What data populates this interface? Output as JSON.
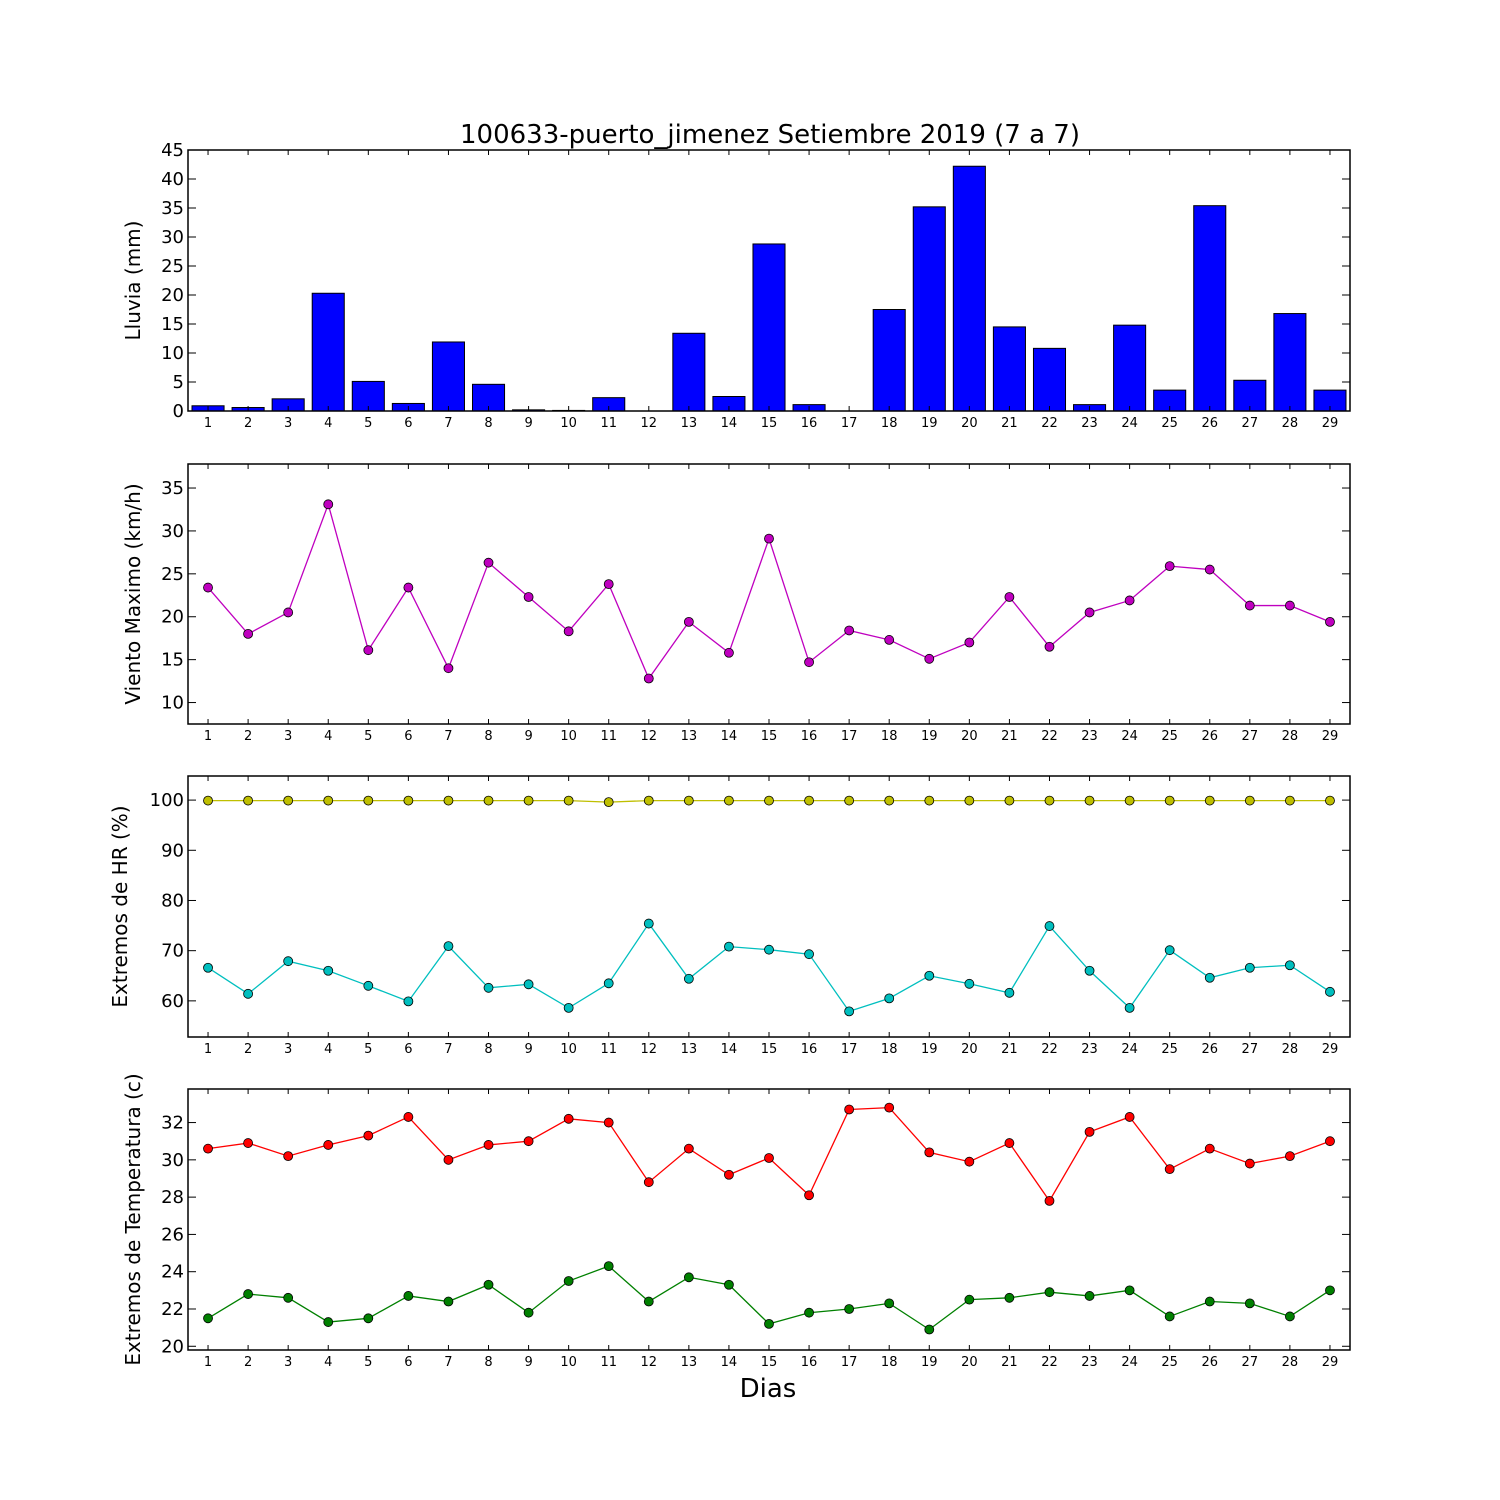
{
  "figure": {
    "title": "100633-puerto_jimenez Setiembre 2019  (7 a 7)",
    "xlabel": "Dias"
  },
  "chart_data": [
    {
      "type": "bar",
      "ylabel": "Lluvia (mm)",
      "ylim": [
        0,
        45
      ],
      "yticks": [
        0,
        5,
        10,
        15,
        20,
        25,
        30,
        35,
        40,
        45
      ],
      "grid": false,
      "categories": [
        1,
        2,
        3,
        4,
        5,
        6,
        7,
        8,
        9,
        10,
        11,
        12,
        13,
        14,
        15,
        16,
        17,
        18,
        19,
        20,
        21,
        22,
        23,
        24,
        25,
        26,
        27,
        28,
        29
      ],
      "series": [
        {
          "color": "#0000ff",
          "values": [
            0.9,
            0.6,
            2.1,
            20.3,
            5.1,
            1.3,
            11.9,
            4.6,
            0.2,
            0.1,
            2.3,
            0.0,
            13.4,
            2.5,
            28.8,
            1.1,
            0.0,
            17.5,
            35.2,
            42.2,
            14.5,
            10.8,
            1.1,
            14.8,
            3.6,
            35.4,
            5.3,
            16.8,
            3.6
          ]
        }
      ]
    },
    {
      "type": "line",
      "ylabel": "Viento Maximo (km/h)",
      "ylim": [
        7.5,
        37.8
      ],
      "yticks": [
        10,
        15,
        20,
        25,
        30,
        35
      ],
      "grid": false,
      "x": [
        1,
        2,
        3,
        4,
        5,
        6,
        7,
        8,
        9,
        10,
        11,
        12,
        13,
        14,
        15,
        16,
        17,
        18,
        19,
        20,
        21,
        22,
        23,
        24,
        25,
        26,
        27,
        28,
        29
      ],
      "series": [
        {
          "color": "#bf00bf",
          "values": [
            23.4,
            18.0,
            20.5,
            33.1,
            16.1,
            23.4,
            14.0,
            26.3,
            22.3,
            18.3,
            23.8,
            12.8,
            19.4,
            15.8,
            29.1,
            14.7,
            18.4,
            17.3,
            15.1,
            17.0,
            22.3,
            16.5,
            20.5,
            21.9,
            25.9,
            25.5,
            21.3,
            21.3,
            19.4
          ]
        }
      ]
    },
    {
      "type": "line",
      "ylabel": "Extremos de HR (%)",
      "ylim": [
        52.8,
        104.8
      ],
      "yticks": [
        60,
        70,
        80,
        90,
        100
      ],
      "grid": false,
      "x": [
        1,
        2,
        3,
        4,
        5,
        6,
        7,
        8,
        9,
        10,
        11,
        12,
        13,
        14,
        15,
        16,
        17,
        18,
        19,
        20,
        21,
        22,
        23,
        24,
        25,
        26,
        27,
        28,
        29
      ],
      "series": [
        {
          "color": "#bfbf00",
          "values": [
            99.9,
            99.9,
            99.9,
            99.9,
            99.9,
            99.9,
            99.9,
            99.9,
            99.9,
            99.9,
            99.6,
            99.9,
            99.9,
            99.9,
            99.9,
            99.9,
            99.9,
            99.9,
            99.9,
            99.9,
            99.9,
            99.9,
            99.9,
            99.9,
            99.9,
            99.9,
            99.9,
            99.9,
            99.9
          ]
        },
        {
          "color": "#00bfbf",
          "values": [
            66.6,
            61.4,
            67.9,
            66.0,
            63.0,
            59.9,
            70.9,
            62.6,
            63.3,
            58.6,
            63.5,
            75.4,
            64.4,
            70.8,
            70.2,
            69.3,
            57.9,
            60.5,
            65.0,
            63.4,
            61.6,
            74.9,
            66.0,
            58.6,
            70.1,
            64.6,
            66.6,
            67.1,
            61.8
          ]
        }
      ]
    },
    {
      "type": "line",
      "ylabel": "Extremos de Temperatura (c)",
      "ylim": [
        19.8,
        33.8
      ],
      "yticks": [
        20,
        22,
        24,
        26,
        28,
        30,
        32
      ],
      "grid": false,
      "x": [
        1,
        2,
        3,
        4,
        5,
        6,
        7,
        8,
        9,
        10,
        11,
        12,
        13,
        14,
        15,
        16,
        17,
        18,
        19,
        20,
        21,
        22,
        23,
        24,
        25,
        26,
        27,
        28,
        29
      ],
      "series": [
        {
          "color": "#ff0000",
          "values": [
            30.6,
            30.9,
            30.2,
            30.8,
            31.3,
            32.3,
            30.0,
            30.8,
            31.0,
            32.2,
            32.0,
            28.8,
            30.6,
            29.2,
            30.1,
            28.1,
            32.7,
            32.8,
            30.4,
            29.9,
            30.9,
            27.8,
            31.5,
            32.3,
            29.5,
            30.6,
            29.8,
            30.2,
            31.0
          ]
        },
        {
          "color": "#008000",
          "values": [
            21.5,
            22.8,
            22.6,
            21.3,
            21.5,
            22.7,
            22.4,
            23.3,
            21.8,
            23.5,
            24.3,
            22.4,
            23.7,
            23.3,
            21.2,
            21.8,
            22.0,
            22.3,
            20.9,
            22.5,
            22.6,
            22.9,
            22.7,
            23.0,
            21.6,
            22.4,
            22.3,
            21.6,
            23.0
          ]
        }
      ]
    }
  ]
}
